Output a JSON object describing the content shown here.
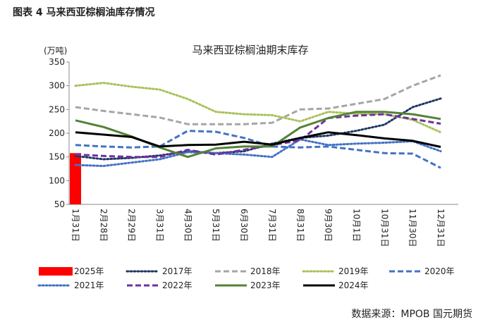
{
  "header": "图表 4 马来西亚棕榈油库存情况",
  "source": "数据来源：MPOB 国元期货",
  "chart_data": {
    "type": "line",
    "title": "马来西亚棕榈油期末库存",
    "y_label": "(万吨)",
    "categories": [
      "1月31日",
      "2月28日",
      "2月29日",
      "3月31日",
      "4月30日",
      "5月31日",
      "6月30日",
      "7月31日",
      "8月31日",
      "9月30日",
      "10月1日",
      "10月31日",
      "11月30日",
      "12月31日"
    ],
    "ylim": [
      50,
      350
    ],
    "yticks": [
      50,
      100,
      150,
      200,
      250,
      300,
      350
    ],
    "series": [
      {
        "name": "2025年",
        "color": "#ff0000",
        "mark": "bar",
        "values": [
          158,
          null,
          null,
          null,
          null,
          null,
          null,
          null,
          null,
          null,
          null,
          null,
          null,
          null
        ]
      },
      {
        "name": "2017年",
        "color": "#203864",
        "dash": "dotted",
        "values": [
          152,
          145,
          148,
          153,
          162,
          158,
          162,
          178,
          190,
          195,
          205,
          218,
          255,
          273
        ]
      },
      {
        "name": "2018年",
        "color": "#a6a6a6",
        "dash": "dashed",
        "values": [
          255,
          247,
          240,
          233,
          219,
          219,
          219,
          222,
          250,
          252,
          262,
          272,
          300,
          322
        ]
      },
      {
        "name": "2019年",
        "color": "#a9c25a",
        "dash": "dotted",
        "values": [
          300,
          306,
          298,
          292,
          272,
          245,
          240,
          238,
          225,
          245,
          241,
          240,
          228,
          202
        ]
      },
      {
        "name": "2020年",
        "color": "#4472c4",
        "dash": "dashed",
        "values": [
          175,
          172,
          170,
          172,
          205,
          203,
          190,
          172,
          170,
          172,
          165,
          158,
          157,
          127
        ]
      },
      {
        "name": "2021年",
        "color": "#4472c4",
        "dash": "dotted",
        "values": [
          133,
          131,
          138,
          145,
          160,
          158,
          155,
          150,
          187,
          175,
          178,
          180,
          183,
          162
        ]
      },
      {
        "name": "2022年",
        "color": "#7030a0",
        "dash": "dashed",
        "values": [
          155,
          152,
          150,
          150,
          165,
          155,
          165,
          175,
          185,
          232,
          237,
          240,
          230,
          220
        ]
      },
      {
        "name": "2023年",
        "color": "#548235",
        "dash": "solid",
        "values": [
          227,
          213,
          193,
          170,
          150,
          168,
          172,
          172,
          212,
          232,
          245,
          245,
          240,
          230
        ]
      },
      {
        "name": "2024年",
        "color": "#000000",
        "dash": "solid",
        "values": [
          202,
          197,
          192,
          172,
          175,
          176,
          182,
          176,
          190,
          202,
          196,
          189,
          184,
          171
        ]
      }
    ]
  }
}
